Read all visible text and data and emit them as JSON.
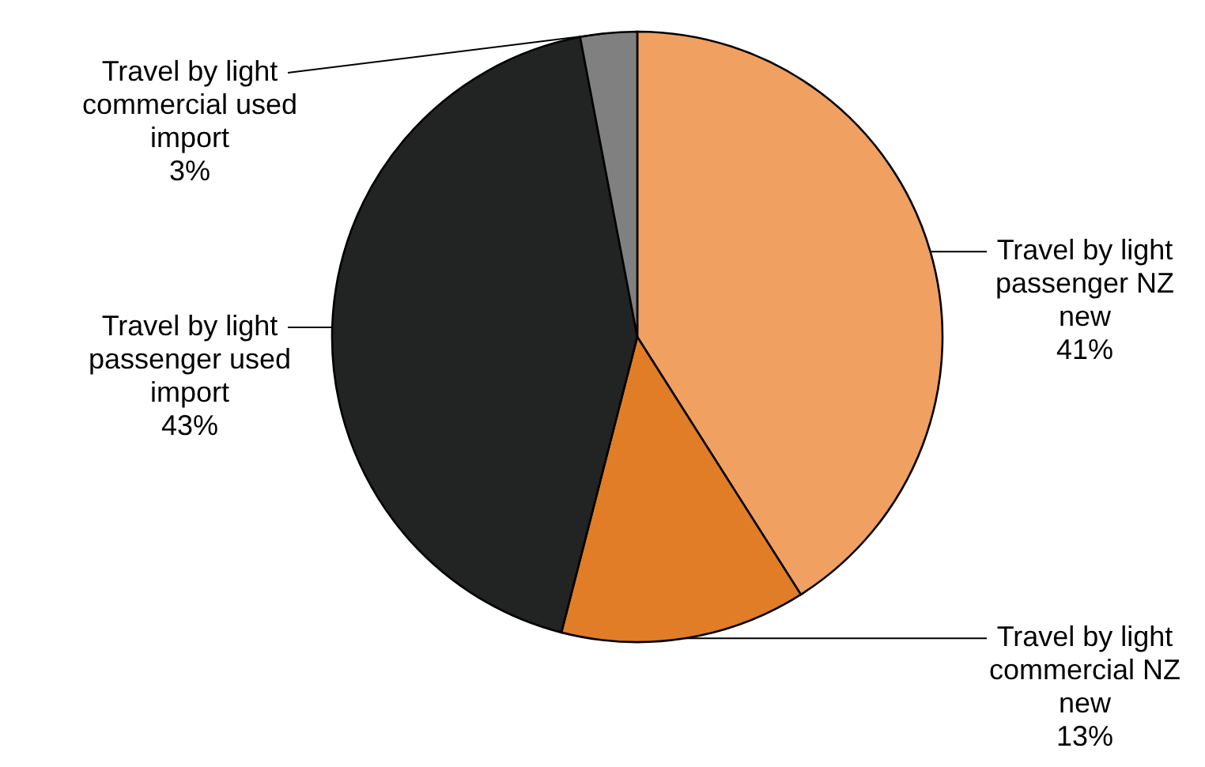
{
  "chart_data": {
    "type": "pie",
    "categories": [
      "Travel by light passenger NZ new",
      "Travel by light commercial NZ new",
      "Travel by light passenger used import",
      "Travel by light commercial used import"
    ],
    "values": [
      41,
      13,
      43,
      3
    ],
    "colors": [
      "#f0a060",
      "#e07d26",
      "#222423",
      "#808080"
    ],
    "value_labels": [
      "41%",
      "13%",
      "43%",
      "3%"
    ]
  }
}
